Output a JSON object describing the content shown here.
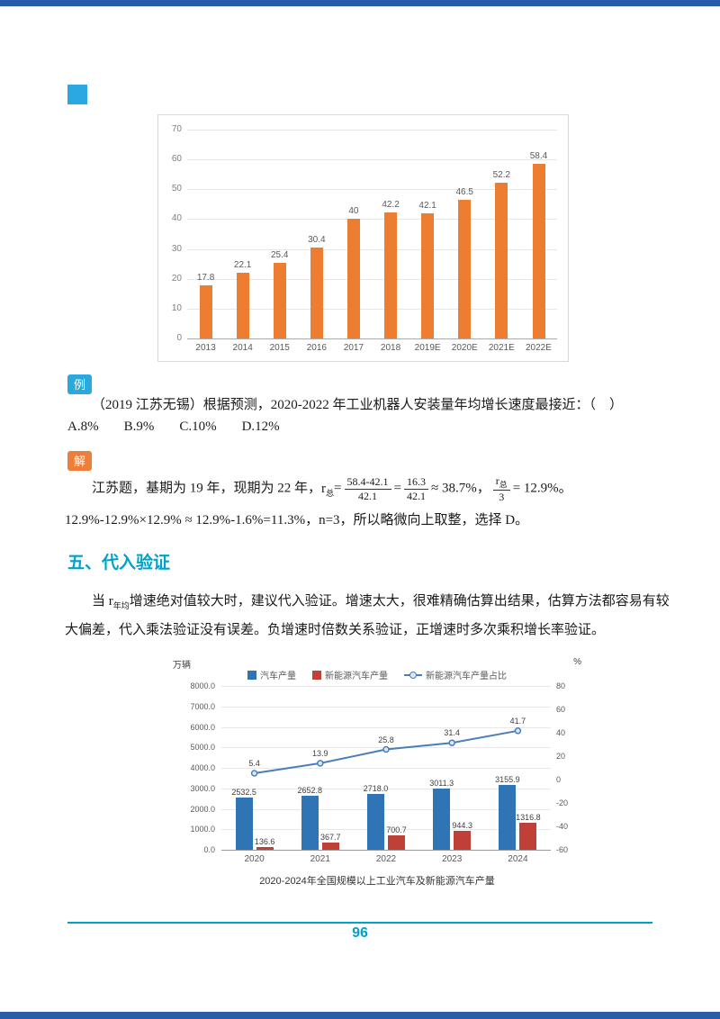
{
  "page": {
    "page_number": "96",
    "colors": {
      "border_bar": "#2a5da9",
      "accent_teal": "#00a3c8",
      "section_marker": "#29a9df",
      "example_badge": "#2ba9dc",
      "solution_badge": "#ee7f3b"
    }
  },
  "example": {
    "badge_label": "例",
    "question": "（2019 江苏无锡）根据预测，2020-2022 年工业机器人安装量年均增长速度最接近：（　）",
    "options": [
      "A.8%",
      "B.9%",
      "C.10%",
      "D.12%"
    ]
  },
  "solution": {
    "badge_label": "解",
    "intro": "江苏题，基期为 19 年，现期为 22 年，",
    "r_var": "r",
    "r_sub": "总",
    "eq1": "=",
    "frac1_num": "58.4-42.1",
    "frac1_den": "42.1",
    "eq2": "=",
    "frac2_num": "16.3",
    "frac2_den": "42.1",
    "approx1": "≈ 38.7%，",
    "frac3_den": "3",
    "tail1": "= 12.9%。12.9%-12.9%×",
    "tail2": "12.9% ≈ 12.9%-1.6%=11.3%，n=3，所以略微向上取整，选择 D。"
  },
  "section": {
    "title": "五、代入验证"
  },
  "paragraph": {
    "part1": "当 r",
    "sub": "年均",
    "part2": "增速绝对值较大时，建议代入验证。增速太大，很难精确估算出结果，估算方法都容易有较大偏差，代入乘法验证没有误差。负增速时倍数关系验证，正增速时多次乘积增长率验证。"
  },
  "chart_data": [
    {
      "type": "bar",
      "title": "",
      "xlabel": "",
      "ylabel": "",
      "categories": [
        "2013",
        "2014",
        "2015",
        "2016",
        "2017",
        "2018",
        "2019E",
        "2020E",
        "2021E",
        "2022E"
      ],
      "values": [
        17.8,
        22.1,
        25.4,
        30.4,
        40,
        42.2,
        42.1,
        46.5,
        52.2,
        58.4
      ],
      "value_labels": [
        "17.8",
        "22.1",
        "25.4",
        "30.4",
        "40",
        "42.2",
        "42.1",
        "46.5",
        "52.2",
        "58.4"
      ],
      "ylim": [
        0,
        70
      ],
      "ytick_step": 10,
      "bar_color": "#ED7D31",
      "grid": true,
      "legend": "none"
    },
    {
      "type": "combo",
      "unit_left": "万辆",
      "unit_right": "%",
      "categories": [
        "2020",
        "2021",
        "2022",
        "2023",
        "2024"
      ],
      "left_axis": {
        "min": 0,
        "max": 8000,
        "tick_labels": [
          "8000.0",
          "7000.0",
          "6000.0",
          "5000.0",
          "4000.0",
          "3000.0",
          "2000.0",
          "1000.0",
          "0.0"
        ]
      },
      "right_axis": {
        "min": -60,
        "max": 80,
        "tick_labels": [
          "80",
          "60",
          "40",
          "20",
          "0",
          "-20",
          "-40",
          "-60"
        ]
      },
      "series": [
        {
          "name": "汽车产量",
          "kind": "bar",
          "color": "#2f74b5",
          "values": [
            2532.5,
            2652.8,
            2718.0,
            3011.3,
            3155.9
          ],
          "labels": [
            "2532.5",
            "2652.8",
            "2718.0",
            "3011.3",
            "3155.9"
          ]
        },
        {
          "name": "新能源汽车产量",
          "kind": "bar",
          "color": "#bf4036",
          "values": [
            136.6,
            367.7,
            700.7,
            944.3,
            1316.8
          ],
          "labels": [
            "136.6",
            "367.7",
            "700.7",
            "944.3",
            "1316.8"
          ]
        },
        {
          "name": "新能源汽车产量占比",
          "kind": "line",
          "axis": "right",
          "color": "#4a7ebb",
          "values": [
            5.4,
            13.9,
            25.8,
            31.4,
            41.7
          ],
          "labels": [
            "5.4",
            "13.9",
            "25.8",
            "31.4",
            "41.7"
          ]
        }
      ],
      "legend_position": "top",
      "grid": true,
      "caption": "2020-2024年全国规模以上工业汽车及新能源汽车产量"
    }
  ]
}
